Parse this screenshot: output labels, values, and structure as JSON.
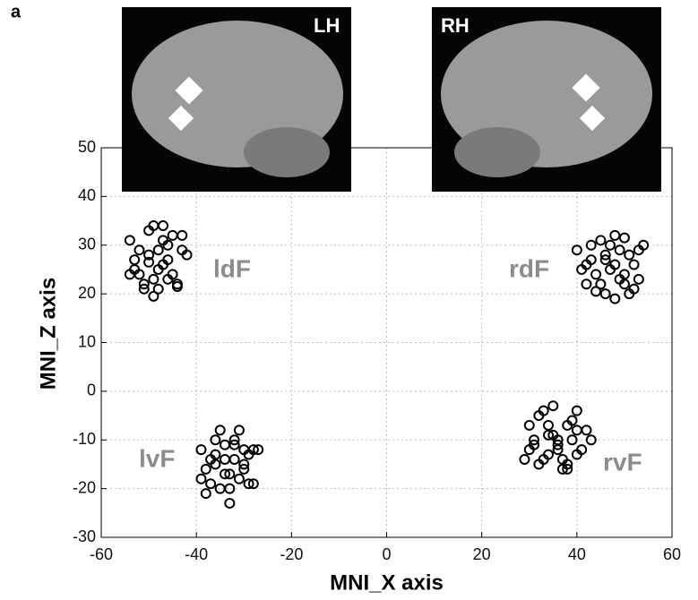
{
  "panel_label": "a",
  "inset_labels": [
    "LH",
    "RH"
  ],
  "chart_data": {
    "type": "scatter",
    "xlabel": "MNI_X axis",
    "ylabel": "MNI_Z axis",
    "xlim": [
      -60,
      60
    ],
    "xticks": [
      -60,
      -40,
      -20,
      0,
      20,
      40,
      60
    ],
    "ylim": [
      -30,
      50
    ],
    "yticks": [
      -30,
      -20,
      -10,
      0,
      10,
      20,
      30,
      40,
      50
    ],
    "grid": true,
    "color": "#000000",
    "annotations": [
      "ldF",
      "rdF",
      "lvF",
      "rvF"
    ],
    "x": [
      -54,
      -53,
      -52,
      -51,
      -50,
      -49,
      -48,
      -47,
      -46,
      -45,
      -44,
      -43,
      -42,
      -53,
      -51,
      -49,
      -47,
      -45,
      -43,
      -52,
      -50,
      -48,
      -46,
      -44,
      -54,
      -49,
      -47,
      -50,
      -48,
      -46,
      40,
      41,
      42,
      43,
      44,
      45,
      46,
      47,
      48,
      49,
      50,
      51,
      52,
      53,
      54,
      42,
      44,
      46,
      48,
      50,
      52,
      45,
      47,
      49,
      51,
      53,
      43,
      48,
      50,
      46,
      -39,
      -38,
      -37,
      -36,
      -35,
      -34,
      -33,
      -32,
      -31,
      -30,
      -29,
      -28,
      -27,
      -38,
      -36,
      -34,
      -32,
      -30,
      -28,
      -37,
      -35,
      -33,
      -31,
      -29,
      -39,
      -36,
      -34,
      -32,
      -30,
      -33,
      29,
      30,
      31,
      32,
      33,
      34,
      35,
      36,
      37,
      38,
      39,
      40,
      41,
      42,
      43,
      30,
      32,
      34,
      36,
      38,
      40,
      33,
      35,
      37,
      39,
      31,
      34,
      36,
      38,
      40
    ],
    "values": [
      31,
      27,
      24,
      22,
      33,
      34,
      29,
      26,
      30,
      32,
      21.5,
      29,
      28,
      25,
      21,
      23,
      31,
      24,
      32,
      29,
      26.5,
      21,
      27,
      22,
      24,
      19.5,
      34,
      28,
      25,
      23,
      29,
      25,
      22,
      27,
      24,
      31,
      20,
      30,
      26,
      23,
      31.5,
      28,
      21,
      29,
      30,
      26,
      20.5,
      28,
      19,
      24,
      26,
      22,
      25,
      29,
      20,
      23,
      30,
      32,
      22,
      27,
      -12,
      -16,
      -19,
      -10,
      -8,
      -14,
      -17,
      -11,
      -8,
      -15,
      -13,
      -19,
      -12,
      -21,
      -13,
      -17,
      -10,
      -16,
      -12,
      -14,
      -20,
      -23,
      -18,
      -19,
      -18,
      -15,
      -11,
      -14,
      -12,
      -20,
      -14,
      -7,
      -11,
      -5,
      -14,
      -9,
      -3,
      -12,
      -16,
      -7,
      -10,
      -4,
      -12,
      -8,
      -10,
      -12,
      -15,
      -7,
      -11,
      -16,
      -13,
      -4,
      -9,
      -14,
      -6,
      -10,
      -13,
      -10,
      -15,
      -8
    ]
  }
}
